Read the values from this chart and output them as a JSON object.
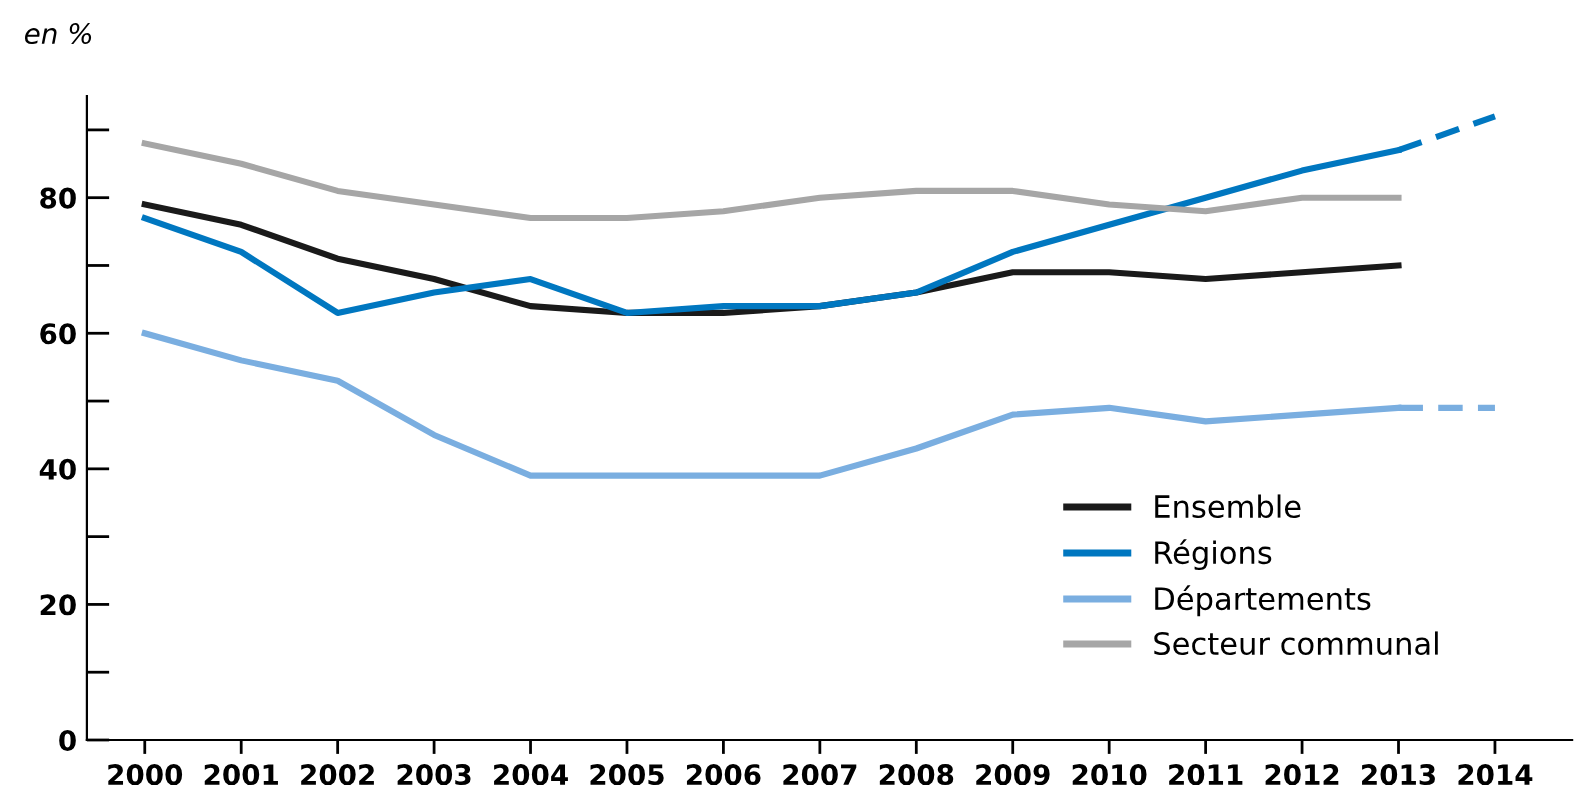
{
  "chart_data": {
    "type": "line",
    "ylabel": "en %",
    "categories": [
      "2000",
      "2001",
      "2002",
      "2003",
      "2004",
      "2005",
      "2006",
      "2007",
      "2008",
      "2009",
      "2010",
      "2011",
      "2012",
      "2013",
      "2014"
    ],
    "series": [
      {
        "name": "Ensemble",
        "color": "#1a1a1a",
        "line_style": "solid",
        "values": [
          79,
          76,
          71,
          68,
          64,
          63,
          63,
          64,
          66,
          69,
          69,
          68,
          69,
          70,
          null
        ]
      },
      {
        "name": "Régions",
        "color": "#0077c0",
        "line_style": "solid",
        "values": [
          77,
          72,
          63,
          66,
          68,
          63,
          64,
          64,
          66,
          72,
          76,
          80,
          84,
          87,
          null
        ]
      },
      {
        "name": "Départements",
        "color": "#7aaee0",
        "line_style": "solid",
        "values": [
          60,
          56,
          53,
          45,
          39,
          39,
          39,
          39,
          43,
          48,
          49,
          47,
          48,
          49,
          null
        ]
      },
      {
        "name": "Secteur communal",
        "color": "#a6a6a6",
        "line_style": "solid",
        "values": [
          88,
          85,
          81,
          79,
          77,
          77,
          78,
          80,
          81,
          81,
          79,
          78,
          80,
          80,
          null
        ]
      },
      {
        "color": "#0077c0",
        "line_style": "dashed",
        "values": [
          null,
          null,
          null,
          null,
          null,
          null,
          null,
          null,
          null,
          null,
          null,
          null,
          null,
          87,
          92
        ]
      },
      {
        "color": "#7aaee0",
        "line_style": "dashed",
        "values": [
          null,
          null,
          null,
          null,
          null,
          null,
          null,
          null,
          null,
          null,
          null,
          null,
          null,
          49,
          49
        ]
      }
    ],
    "ylim": [
      0,
      95
    ],
    "yticks": [
      0,
      {
        "value": 10,
        "label": null
      },
      20,
      {
        "value": 30,
        "label": null
      },
      40,
      {
        "value": 50,
        "label": null
      },
      60,
      {
        "value": 70,
        "label": null
      },
      80,
      {
        "value": 90,
        "label": null
      }
    ],
    "grid": false,
    "legend": "bottom right",
    "marker": "none"
  }
}
